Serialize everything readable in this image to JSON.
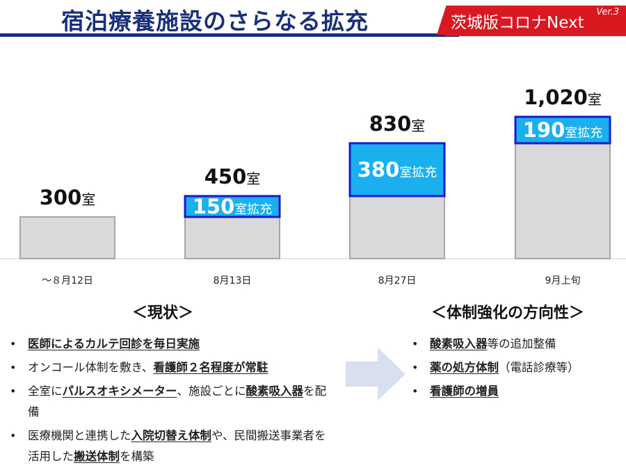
{
  "header": {
    "title": "宿泊療養施設のさらなる拡充",
    "brand": "茨城版コロナNext",
    "version": "Ver.3"
  },
  "colors": {
    "title": "#1a2f7a",
    "brand_bg": "#d9181f",
    "base_bar": "#d9d9d9",
    "expansion_fill": "#1ab0ef",
    "expansion_border": "#1a1acc"
  },
  "chart_data": {
    "type": "bar",
    "stacked": true,
    "unit": "室",
    "expansion_suffix": "室拡充",
    "categories": [
      "～８月12日",
      "8月13日",
      "8月27日",
      "9月上旬"
    ],
    "totals": [
      300,
      450,
      830,
      1020
    ],
    "total_labels": [
      "300",
      "450",
      "830",
      "1,020"
    ],
    "series": [
      {
        "values": [
          300,
          300,
          450,
          830
        ]
      },
      {
        "values": [
          0,
          150,
          380,
          190
        ]
      }
    ],
    "ylim": [
      0,
      1100
    ],
    "grid": false
  },
  "current": {
    "heading": "＜現状＞",
    "items": [
      [
        {
          "t": "医師によるカルテ回診を毎日実施",
          "u": true
        }
      ],
      [
        {
          "t": "オンコール体制を敷き、",
          "u": false
        },
        {
          "t": "看護師２名程度が常駐",
          "u": true
        }
      ],
      [
        {
          "t": "全室に",
          "u": false
        },
        {
          "t": "パルスオキシメーター",
          "u": true
        },
        {
          "t": "、施設ごとに",
          "u": false
        },
        {
          "t": "酸素吸入器",
          "u": true
        },
        {
          "t": "を配備",
          "u": false
        }
      ],
      [
        {
          "t": "医療機関と連携した",
          "u": false
        },
        {
          "t": "入院切替え体制",
          "u": true
        },
        {
          "t": "や、民間搬送事業者を活用した",
          "u": false
        },
        {
          "t": "搬送体制",
          "u": true
        },
        {
          "t": "を構築",
          "u": false
        }
      ]
    ]
  },
  "direction": {
    "heading": "＜体制強化の方向性＞",
    "items": [
      [
        {
          "t": "酸素吸入器",
          "u": true
        },
        {
          "t": "等の追加整備",
          "u": false
        }
      ],
      [
        {
          "t": "薬の処方体制",
          "u": true
        },
        {
          "t": "（電話診療等）",
          "u": false
        }
      ],
      [
        {
          "t": "看護師の増員",
          "u": true
        }
      ]
    ]
  }
}
